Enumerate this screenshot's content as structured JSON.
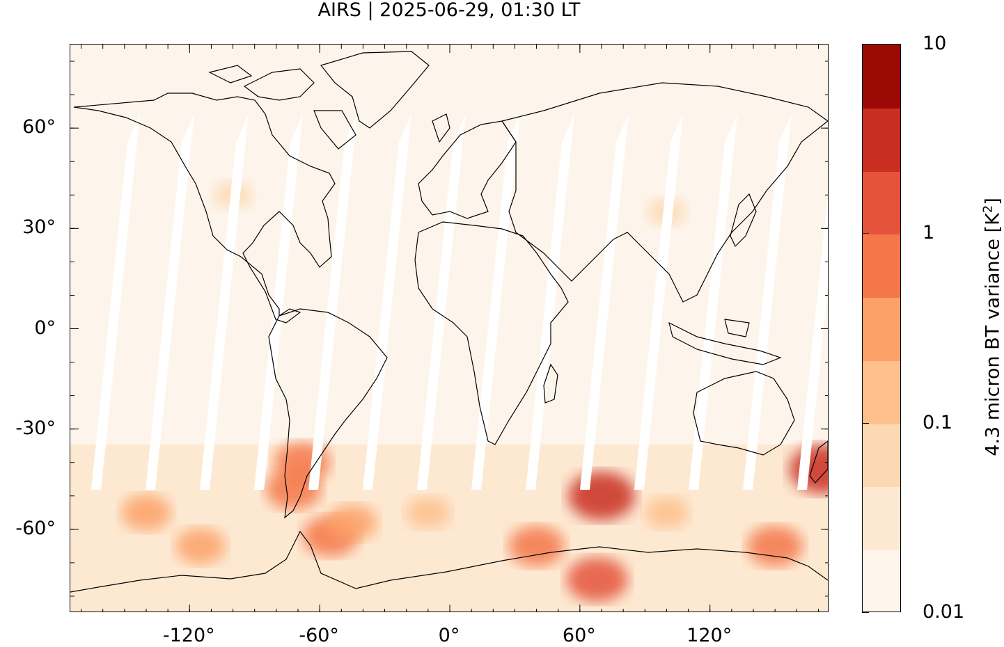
{
  "title": "AIRS | 2025-06-29, 01:30 LT",
  "map": {
    "projection": "equirectangular",
    "lon_range": [
      -175,
      175
    ],
    "lat_range": [
      -85,
      85
    ],
    "x_ticks": [
      {
        "value": -120,
        "label": "-120°"
      },
      {
        "value": -60,
        "label": "-60°"
      },
      {
        "value": 0,
        "label": "0°"
      },
      {
        "value": 60,
        "label": "60°"
      },
      {
        "value": 120,
        "label": "120°"
      }
    ],
    "y_ticks": [
      {
        "value": 60,
        "label": "60°"
      },
      {
        "value": 30,
        "label": "30°"
      },
      {
        "value": 0,
        "label": "0°"
      },
      {
        "value": -30,
        "label": "-30°"
      },
      {
        "value": -60,
        "label": "-60°"
      }
    ],
    "background_color": "#fdf5eb",
    "gap_color": "#ffffff",
    "coastline_color": "#000000"
  },
  "colorbar": {
    "title_prefix": "4.3 micron BT variance [K",
    "title_sup": "2",
    "title_suffix": "]",
    "scale": "log",
    "range": [
      0.01,
      10
    ],
    "labels": [
      {
        "value": 10,
        "label": "10"
      },
      {
        "value": 1,
        "label": "1"
      },
      {
        "value": 0.1,
        "label": "0.1"
      },
      {
        "value": 0.01,
        "label": "0.01"
      }
    ],
    "colors": [
      "#fdf5eb",
      "#fde9d2",
      "#fdd9b3",
      "#fdc08c",
      "#fca167",
      "#f4774a",
      "#e4533a",
      "#c92f20",
      "#9c0a05"
    ]
  },
  "hotspots": [
    {
      "lon": -68,
      "lat": -40,
      "level": 5
    },
    {
      "lon": -72,
      "lat": -48,
      "level": 5
    },
    {
      "lon": -55,
      "lat": -62,
      "level": 5
    },
    {
      "lon": -45,
      "lat": -58,
      "level": 4
    },
    {
      "lon": -115,
      "lat": -65,
      "level": 4
    },
    {
      "lon": -140,
      "lat": -55,
      "level": 4
    },
    {
      "lon": 40,
      "lat": -65,
      "level": 5
    },
    {
      "lon": 68,
      "lat": -75,
      "level": 6
    },
    {
      "lon": 150,
      "lat": -65,
      "level": 5
    },
    {
      "lon": 172,
      "lat": -42,
      "level": 7
    },
    {
      "lon": 70,
      "lat": -50,
      "level": 7
    },
    {
      "lon": -10,
      "lat": -55,
      "level": 3
    },
    {
      "lon": 100,
      "lat": -55,
      "level": 3
    },
    {
      "lon": -100,
      "lat": 40,
      "level": 2
    },
    {
      "lon": 100,
      "lat": 35,
      "level": 2
    }
  ]
}
